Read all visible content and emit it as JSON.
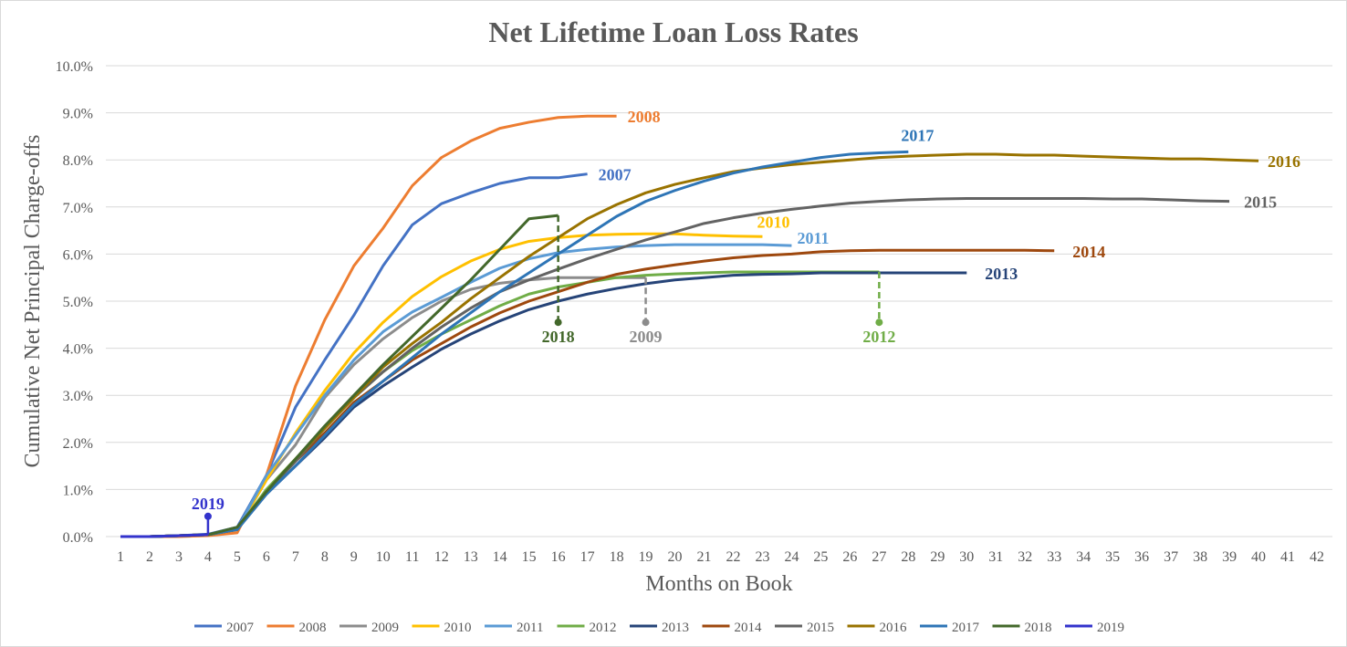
{
  "chart_data": {
    "type": "line",
    "title": "Net Lifetime Loan Loss Rates",
    "xlabel": "Months on Book",
    "ylabel": "Cumulative Net Principal Charge-offs",
    "x_ticks": [
      1,
      2,
      3,
      4,
      5,
      6,
      7,
      8,
      9,
      10,
      11,
      12,
      13,
      14,
      15,
      16,
      17,
      18,
      19,
      20,
      21,
      22,
      23,
      24,
      25,
      26,
      27,
      28,
      29,
      30,
      31,
      32,
      33,
      34,
      35,
      36,
      37,
      38,
      39,
      40,
      41,
      42
    ],
    "y_ticks": [
      "0.0%",
      "1.0%",
      "2.0%",
      "3.0%",
      "4.0%",
      "5.0%",
      "6.0%",
      "7.0%",
      "8.0%",
      "9.0%",
      "10.0%"
    ],
    "xlim": [
      1,
      42
    ],
    "ylim": [
      0,
      10
    ],
    "y_unit": "percent",
    "grid": "horizontal",
    "legend_position": "bottom",
    "series": [
      {
        "name": "2007",
        "color": "#4472C4",
        "label": "end",
        "values": [
          0,
          0,
          0.02,
          0.05,
          0.2,
          1.3,
          2.75,
          3.75,
          4.7,
          5.75,
          6.62,
          7.07,
          7.3,
          7.5,
          7.62,
          7.62,
          7.7
        ]
      },
      {
        "name": "2008",
        "color": "#ED7D31",
        "label": "end",
        "values": [
          0,
          0,
          0,
          0.02,
          0.08,
          1.3,
          3.2,
          4.6,
          5.75,
          6.55,
          7.45,
          8.05,
          8.4,
          8.67,
          8.8,
          8.9,
          8.93,
          8.93
        ]
      },
      {
        "name": "2009",
        "color": "#8C8C8C",
        "label": "drop",
        "drop_to": 4.55,
        "values": [
          0,
          0,
          0.02,
          0.04,
          0.15,
          1.2,
          1.95,
          2.95,
          3.65,
          4.2,
          4.65,
          5.0,
          5.25,
          5.38,
          5.45,
          5.5,
          5.5,
          5.5,
          5.5
        ]
      },
      {
        "name": "2010",
        "color": "#FFC000",
        "label": "end",
        "values": [
          0,
          0,
          0.02,
          0.04,
          0.15,
          1.2,
          2.2,
          3.1,
          3.9,
          4.55,
          5.1,
          5.52,
          5.85,
          6.1,
          6.27,
          6.35,
          6.4,
          6.42,
          6.43,
          6.43,
          6.4,
          6.38,
          6.37
        ]
      },
      {
        "name": "2011",
        "color": "#5B9BD5",
        "label": "end",
        "values": [
          0,
          0,
          0.02,
          0.04,
          0.15,
          1.3,
          2.15,
          3.0,
          3.75,
          4.35,
          4.77,
          5.08,
          5.4,
          5.7,
          5.9,
          6.03,
          6.1,
          6.15,
          6.18,
          6.2,
          6.2,
          6.2,
          6.2,
          6.18
        ]
      },
      {
        "name": "2012",
        "color": "#70AD47",
        "label": "drop",
        "drop_to": 4.55,
        "values": [
          0,
          0,
          0.02,
          0.04,
          0.15,
          1.0,
          1.65,
          2.3,
          2.95,
          3.5,
          3.95,
          4.3,
          4.6,
          4.9,
          5.15,
          5.3,
          5.4,
          5.5,
          5.55,
          5.58,
          5.6,
          5.62,
          5.62,
          5.62,
          5.62,
          5.62,
          5.62
        ]
      },
      {
        "name": "2013",
        "color": "#264478",
        "label": "end",
        "values": [
          0,
          0,
          0.02,
          0.04,
          0.15,
          0.9,
          1.5,
          2.1,
          2.75,
          3.2,
          3.6,
          3.98,
          4.3,
          4.58,
          4.82,
          5.0,
          5.15,
          5.27,
          5.37,
          5.45,
          5.5,
          5.55,
          5.57,
          5.58,
          5.6,
          5.6,
          5.6,
          5.6,
          5.6,
          5.6
        ]
      },
      {
        "name": "2014",
        "color": "#9E480E",
        "label": "end",
        "values": [
          0,
          0,
          0.02,
          0.04,
          0.15,
          0.95,
          1.6,
          2.2,
          2.85,
          3.3,
          3.75,
          4.1,
          4.45,
          4.75,
          5.0,
          5.2,
          5.4,
          5.57,
          5.68,
          5.77,
          5.85,
          5.92,
          5.97,
          6.0,
          6.05,
          6.07,
          6.08,
          6.08,
          6.08,
          6.08,
          6.08,
          6.08,
          6.07
        ]
      },
      {
        "name": "2015",
        "color": "#636363",
        "label": "end",
        "values": [
          0,
          0,
          0.02,
          0.04,
          0.15,
          0.95,
          1.6,
          2.3,
          2.95,
          3.5,
          4.0,
          4.45,
          4.85,
          5.2,
          5.45,
          5.68,
          5.9,
          6.1,
          6.3,
          6.47,
          6.65,
          6.77,
          6.87,
          6.95,
          7.02,
          7.08,
          7.12,
          7.15,
          7.17,
          7.18,
          7.18,
          7.18,
          7.18,
          7.18,
          7.17,
          7.17,
          7.15,
          7.13,
          7.12
        ]
      },
      {
        "name": "2016",
        "color": "#997300",
        "label": "end",
        "values": [
          0,
          0,
          0.02,
          0.04,
          0.15,
          0.95,
          1.65,
          2.3,
          2.95,
          3.6,
          4.1,
          4.55,
          5.05,
          5.5,
          5.95,
          6.35,
          6.75,
          7.05,
          7.3,
          7.48,
          7.62,
          7.75,
          7.83,
          7.9,
          7.95,
          8.0,
          8.05,
          8.08,
          8.1,
          8.12,
          8.12,
          8.1,
          8.1,
          8.08,
          8.06,
          8.04,
          8.02,
          8.02,
          8.0,
          7.98
        ]
      },
      {
        "name": "2017",
        "color": "#2E75B6",
        "label": "end",
        "values": [
          0,
          0,
          0.02,
          0.04,
          0.15,
          0.9,
          1.5,
          2.15,
          2.8,
          3.3,
          3.8,
          4.3,
          4.75,
          5.2,
          5.6,
          6.0,
          6.4,
          6.8,
          7.12,
          7.35,
          7.55,
          7.72,
          7.85,
          7.95,
          8.05,
          8.12,
          8.15,
          8.17
        ]
      },
      {
        "name": "2018",
        "color": "#43682B",
        "label": "drop",
        "drop_to": 4.55,
        "values": [
          0,
          0,
          0.02,
          0.04,
          0.2,
          0.95,
          1.65,
          2.35,
          3.0,
          3.65,
          4.25,
          4.85,
          5.45,
          6.1,
          6.75,
          6.82
        ]
      },
      {
        "name": "2019",
        "color": "#3333CC",
        "label": "rise",
        "drop_to": 0.43,
        "values": [
          0,
          0,
          0.02,
          0.04
        ]
      }
    ]
  }
}
